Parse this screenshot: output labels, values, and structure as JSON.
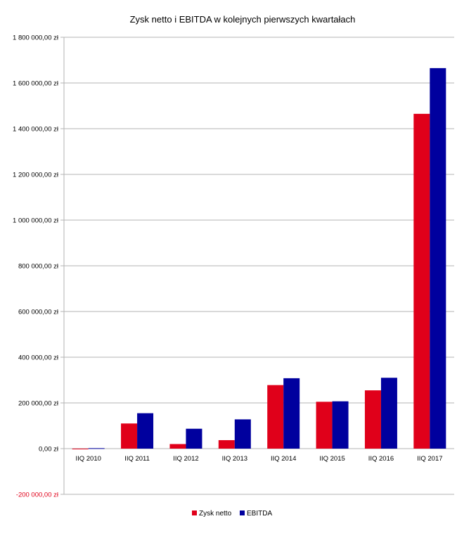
{
  "chart_data": {
    "type": "bar",
    "title": "Zysk netto i EBITDA w kolejnych pierwszych kwartałach",
    "categories": [
      "IIQ 2010",
      "IIQ 2011",
      "IIQ 2012",
      "IIQ 2013",
      "IIQ 2014",
      "IIQ 2015",
      "IIQ 2016",
      "IIQ 2017"
    ],
    "series": [
      {
        "name": "Zysk netto",
        "color": "#e0001a",
        "values": [
          -3000,
          110000,
          20000,
          37000,
          278000,
          205000,
          255000,
          1465000
        ]
      },
      {
        "name": "EBITDA",
        "color": "#00009e",
        "values": [
          2000,
          155000,
          87000,
          128000,
          308000,
          207000,
          310000,
          1665000
        ]
      }
    ],
    "ylim": [
      -200000,
      1800000
    ],
    "yticks": [
      {
        "value": 1800000,
        "label": "1 800 000,00 zł"
      },
      {
        "value": 1600000,
        "label": "1 600 000,00 zł"
      },
      {
        "value": 1400000,
        "label": "1 400 000,00 zł"
      },
      {
        "value": 1200000,
        "label": "1 200 000,00 zł"
      },
      {
        "value": 1000000,
        "label": "1 000 000,00 zł"
      },
      {
        "value": 800000,
        "label": "800 000,00 zł"
      },
      {
        "value": 600000,
        "label": "600 000,00 zł"
      },
      {
        "value": 400000,
        "label": "400 000,00 zł"
      },
      {
        "value": 200000,
        "label": "200 000,00 zł"
      },
      {
        "value": 0,
        "label": "0,00 zł"
      },
      {
        "value": -200000,
        "label": "-200 000,00 zł"
      }
    ],
    "negative_tick_color": "#e0001a",
    "grid": true,
    "legend_position": "bottom"
  }
}
